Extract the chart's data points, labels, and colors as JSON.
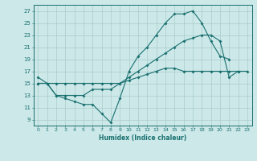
{
  "xlabel": "Humidex (Indice chaleur)",
  "bg_color": "#cce8e8",
  "grid_color": "#aacccc",
  "line_color": "#1a7070",
  "xlim": [
    -0.5,
    23.5
  ],
  "ylim": [
    8,
    28
  ],
  "yticks": [
    9,
    11,
    13,
    15,
    17,
    19,
    21,
    23,
    25,
    27
  ],
  "xticks": [
    0,
    1,
    2,
    3,
    4,
    5,
    6,
    7,
    8,
    9,
    10,
    11,
    12,
    13,
    14,
    15,
    16,
    17,
    18,
    19,
    20,
    21,
    22,
    23
  ],
  "line1_x": [
    0,
    1,
    2,
    3,
    4,
    5,
    6,
    7,
    8,
    9,
    10,
    11,
    12,
    13,
    14,
    15,
    16,
    17,
    18,
    19,
    20,
    21
  ],
  "line1_y": [
    16,
    15,
    13,
    12.5,
    12,
    11.5,
    11.5,
    10,
    8.5,
    12.5,
    17,
    19.5,
    21,
    23,
    25,
    26.5,
    26.5,
    27,
    25,
    22,
    19.5,
    19
  ],
  "line2_x": [
    0,
    1,
    2,
    3,
    4,
    5,
    6,
    7,
    8,
    9,
    10,
    11,
    12,
    13,
    14,
    15,
    16,
    17,
    18,
    19,
    20,
    21,
    22,
    23
  ],
  "line2_y": [
    15,
    15,
    13,
    13,
    13,
    13,
    14,
    14,
    14,
    15,
    16,
    17,
    18,
    19,
    20,
    21,
    22,
    22.5,
    23,
    23,
    22,
    16,
    17,
    null
  ],
  "line3_x": [
    0,
    1,
    2,
    3,
    4,
    5,
    6,
    7,
    8,
    9,
    10,
    11,
    12,
    13,
    14,
    15,
    16,
    17,
    18,
    19,
    20,
    21,
    22,
    23
  ],
  "line3_y": [
    15,
    15,
    15,
    15,
    15,
    15,
    15,
    15,
    15,
    15,
    15.5,
    16,
    16.5,
    17,
    17.5,
    17.5,
    17,
    17,
    17,
    17,
    17,
    17,
    17,
    17
  ]
}
